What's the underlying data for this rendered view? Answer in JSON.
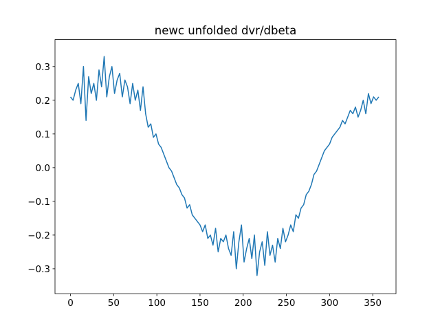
{
  "chart_data": {
    "type": "line",
    "title": "newc unfolded dvr/dbeta",
    "x": [
      0,
      3,
      6,
      9,
      12,
      15,
      18,
      21,
      24,
      27,
      30,
      33,
      36,
      39,
      42,
      45,
      48,
      51,
      54,
      57,
      60,
      63,
      66,
      69,
      72,
      75,
      78,
      81,
      84,
      87,
      90,
      93,
      96,
      99,
      102,
      105,
      108,
      111,
      114,
      117,
      120,
      123,
      126,
      129,
      132,
      135,
      138,
      141,
      144,
      147,
      150,
      153,
      156,
      159,
      162,
      165,
      168,
      171,
      174,
      177,
      180,
      183,
      186,
      189,
      192,
      195,
      198,
      201,
      204,
      207,
      210,
      213,
      216,
      219,
      222,
      225,
      228,
      231,
      234,
      237,
      240,
      243,
      246,
      249,
      252,
      255,
      258,
      261,
      264,
      267,
      270,
      273,
      276,
      279,
      282,
      285,
      288,
      291,
      294,
      297,
      300,
      303,
      306,
      309,
      312,
      315,
      318,
      321,
      324,
      327,
      330,
      333,
      336,
      339,
      342,
      345,
      348,
      351,
      354,
      357
    ],
    "values": [
      0.21,
      0.2,
      0.23,
      0.25,
      0.19,
      0.3,
      0.14,
      0.27,
      0.22,
      0.25,
      0.2,
      0.29,
      0.24,
      0.33,
      0.21,
      0.27,
      0.3,
      0.22,
      0.26,
      0.28,
      0.21,
      0.26,
      0.24,
      0.19,
      0.25,
      0.2,
      0.23,
      0.17,
      0.24,
      0.16,
      0.12,
      0.13,
      0.09,
      0.1,
      0.07,
      0.06,
      0.04,
      0.02,
      0.0,
      -0.01,
      -0.03,
      -0.05,
      -0.06,
      -0.08,
      -0.09,
      -0.12,
      -0.11,
      -0.14,
      -0.15,
      -0.16,
      -0.17,
      -0.19,
      -0.17,
      -0.21,
      -0.2,
      -0.23,
      -0.18,
      -0.25,
      -0.21,
      -0.22,
      -0.2,
      -0.24,
      -0.26,
      -0.19,
      -0.3,
      -0.22,
      -0.17,
      -0.28,
      -0.24,
      -0.21,
      -0.27,
      -0.2,
      -0.32,
      -0.25,
      -0.22,
      -0.29,
      -0.19,
      -0.26,
      -0.23,
      -0.28,
      -0.21,
      -0.24,
      -0.18,
      -0.22,
      -0.2,
      -0.17,
      -0.19,
      -0.14,
      -0.15,
      -0.12,
      -0.11,
      -0.08,
      -0.07,
      -0.05,
      -0.02,
      -0.01,
      0.01,
      0.03,
      0.05,
      0.06,
      0.07,
      0.09,
      0.1,
      0.11,
      0.12,
      0.14,
      0.13,
      0.15,
      0.17,
      0.16,
      0.18,
      0.15,
      0.17,
      0.2,
      0.16,
      0.22,
      0.19,
      0.21,
      0.2,
      0.21
    ],
    "color": "#1f77b4",
    "xlim": [
      -17.95,
      376.95
    ],
    "xticks": [
      0,
      50,
      100,
      150,
      200,
      250,
      300,
      350
    ],
    "ylim": [
      -0.374,
      0.38
    ],
    "yticks": [
      {
        "value": -0.3,
        "label": "−0.3"
      },
      {
        "value": -0.2,
        "label": "−0.2"
      },
      {
        "value": -0.1,
        "label": "−0.1"
      },
      {
        "value": 0,
        "label": "0.0"
      },
      0.1,
      0.2,
      0.3
    ],
    "grid": false
  }
}
